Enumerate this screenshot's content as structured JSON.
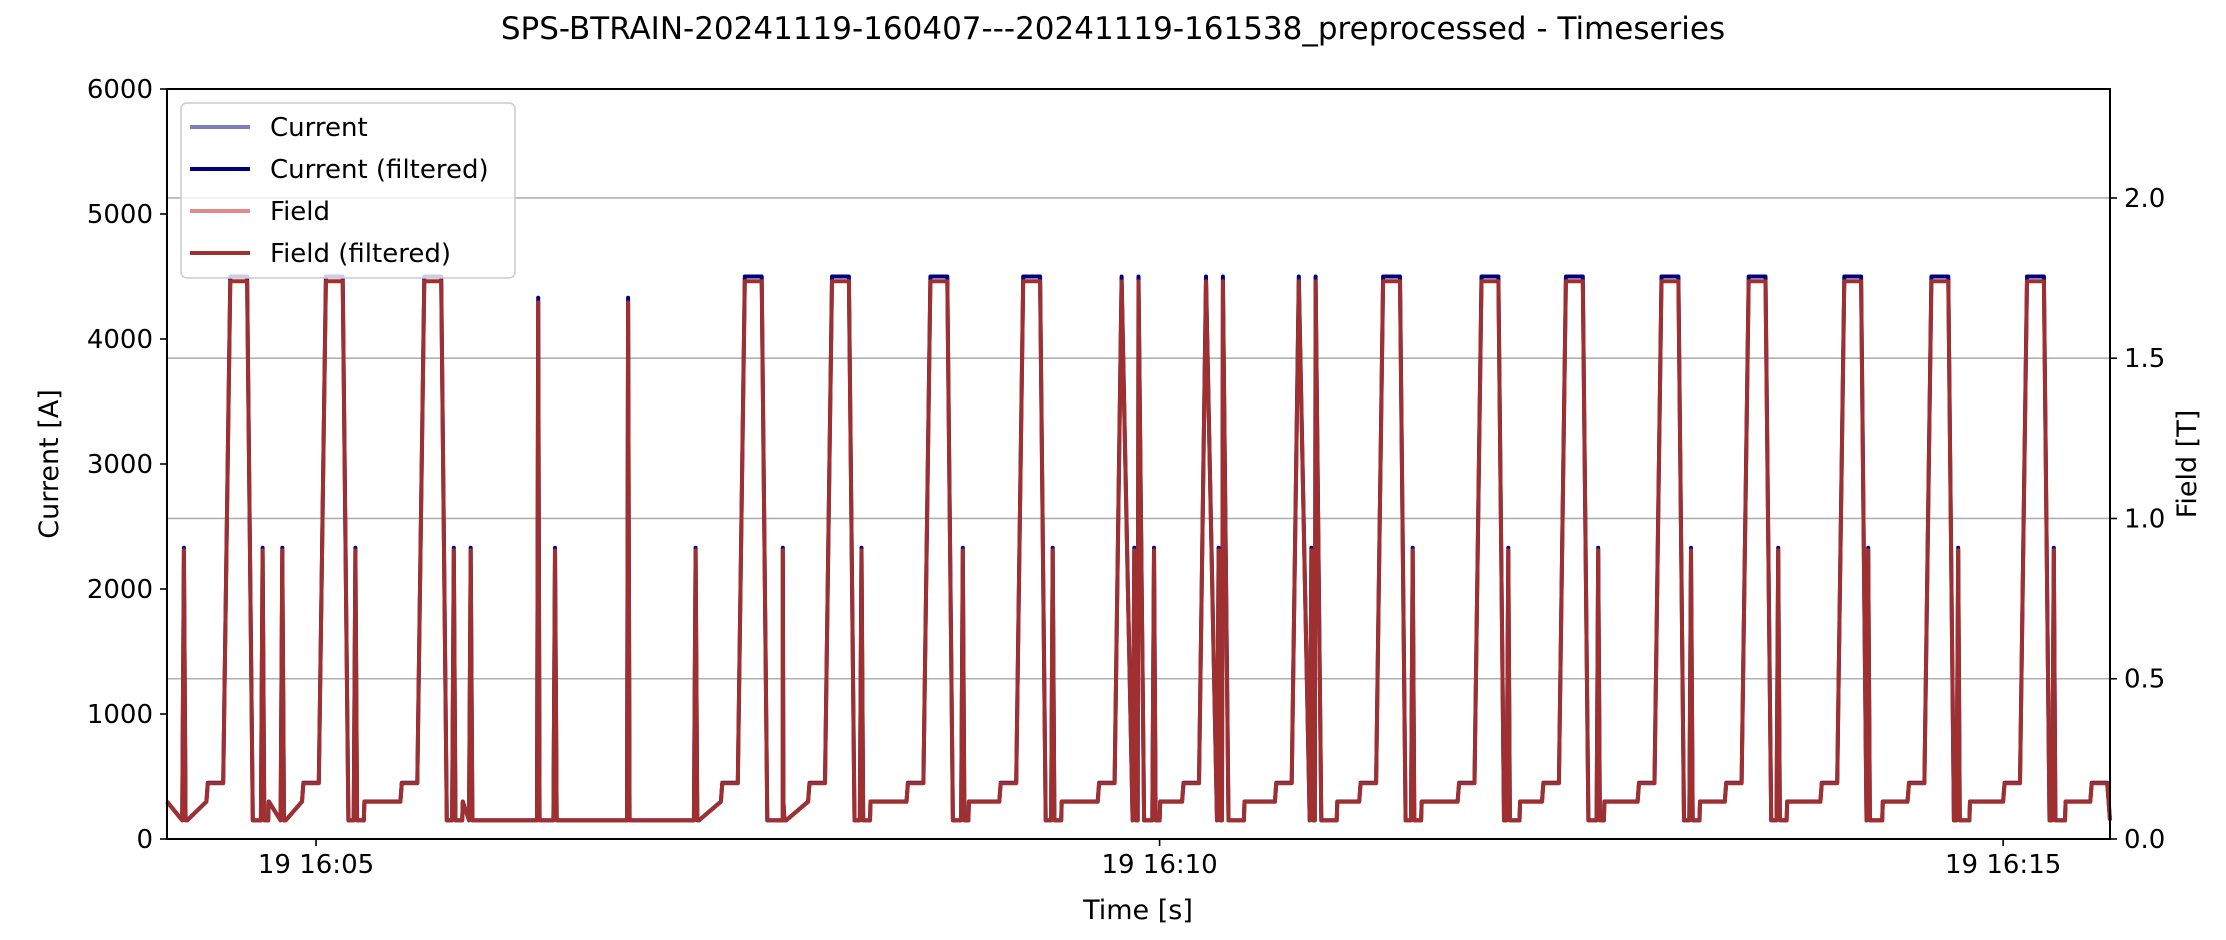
{
  "chart_data": {
    "type": "line",
    "title": "SPS-BTRAIN-20241119-160407---20241119-161538_preprocessed - Timeseries",
    "xlabel": "Time [s]",
    "ylabel": "Current [A]",
    "y2label": "Field [T]",
    "xlim": [
      "2024-11-19 16:04:07",
      "2024-11-19 16:15:38"
    ],
    "ylim": [
      0,
      6000
    ],
    "y2lim": [
      0,
      2.34
    ],
    "xticks": [
      {
        "time": "2024-11-19 16:05:00",
        "label": "19 16:05"
      },
      {
        "time": "2024-11-19 16:10:00",
        "label": "19 16:10"
      },
      {
        "time": "2024-11-19 16:15:00",
        "label": "19 16:15"
      }
    ],
    "yticks": [
      0,
      1000,
      2000,
      3000,
      4000,
      5000,
      6000
    ],
    "y2ticks": [
      0.0,
      0.5,
      1.0,
      1.5,
      2.0
    ],
    "grid": "horizontal lines at right-axis ticks",
    "legend_position": "upper-left",
    "series": [
      {
        "name": "Current",
        "axis": "left",
        "color": "#7b7bbf"
      },
      {
        "name": "Current (filtered)",
        "axis": "left",
        "color": "#00007f"
      },
      {
        "name": "Field",
        "axis": "right",
        "color": "#e08a8a"
      },
      {
        "name": "Field (filtered)",
        "axis": "right",
        "color": "#a03030"
      }
    ],
    "cycle_shape": {
      "base_current": 150,
      "injection_current": 300,
      "flat_top_current": 4500,
      "flat_top_field": 1.74,
      "mini_cycle_peak_current": 2330,
      "short_spike_current": 4330
    },
    "long_cycles_start": [
      "2024-11-19 16:04:27",
      "2024-11-19 16:05:01",
      "2024-11-19 16:05:36",
      "2024-11-19 16:07:30",
      "2024-11-19 16:08:01",
      "2024-11-19 16:08:36",
      "2024-11-19 16:09:09",
      "2024-11-19 16:09:44",
      "2024-11-19 16:10:14",
      "2024-11-19 16:10:47",
      "2024-11-19 16:11:17",
      "2024-11-19 16:11:52",
      "2024-11-19 16:12:22",
      "2024-11-19 16:12:56",
      "2024-11-19 16:13:27",
      "2024-11-19 16:14:01",
      "2024-11-19 16:14:32",
      "2024-11-19 16:15:06",
      "2024-11-19 16:15:37"
    ],
    "short_spikes": [
      "2024-11-19 16:06:19",
      "2024-11-19 16:06:51"
    ],
    "mini_cycles": [
      "2024-11-19 16:04:13",
      "2024-11-19 16:04:41",
      "2024-11-19 16:04:48",
      "2024-11-19 16:05:14",
      "2024-11-19 16:05:49",
      "2024-11-19 16:05:55",
      "2024-11-19 16:06:25",
      "2024-11-19 16:07:15",
      "2024-11-19 16:07:46",
      "2024-11-19 16:08:14",
      "2024-11-19 16:08:50",
      "2024-11-19 16:09:22",
      "2024-11-19 16:09:51",
      "2024-11-19 16:09:58",
      "2024-11-19 16:10:21",
      "2024-11-19 16:10:54",
      "2024-11-19 16:11:30",
      "2024-11-19 16:12:04",
      "2024-11-19 16:12:36",
      "2024-11-19 16:13:09",
      "2024-11-19 16:13:40",
      "2024-11-19 16:14:12",
      "2024-11-19 16:14:44",
      "2024-11-19 16:15:18"
    ]
  }
}
